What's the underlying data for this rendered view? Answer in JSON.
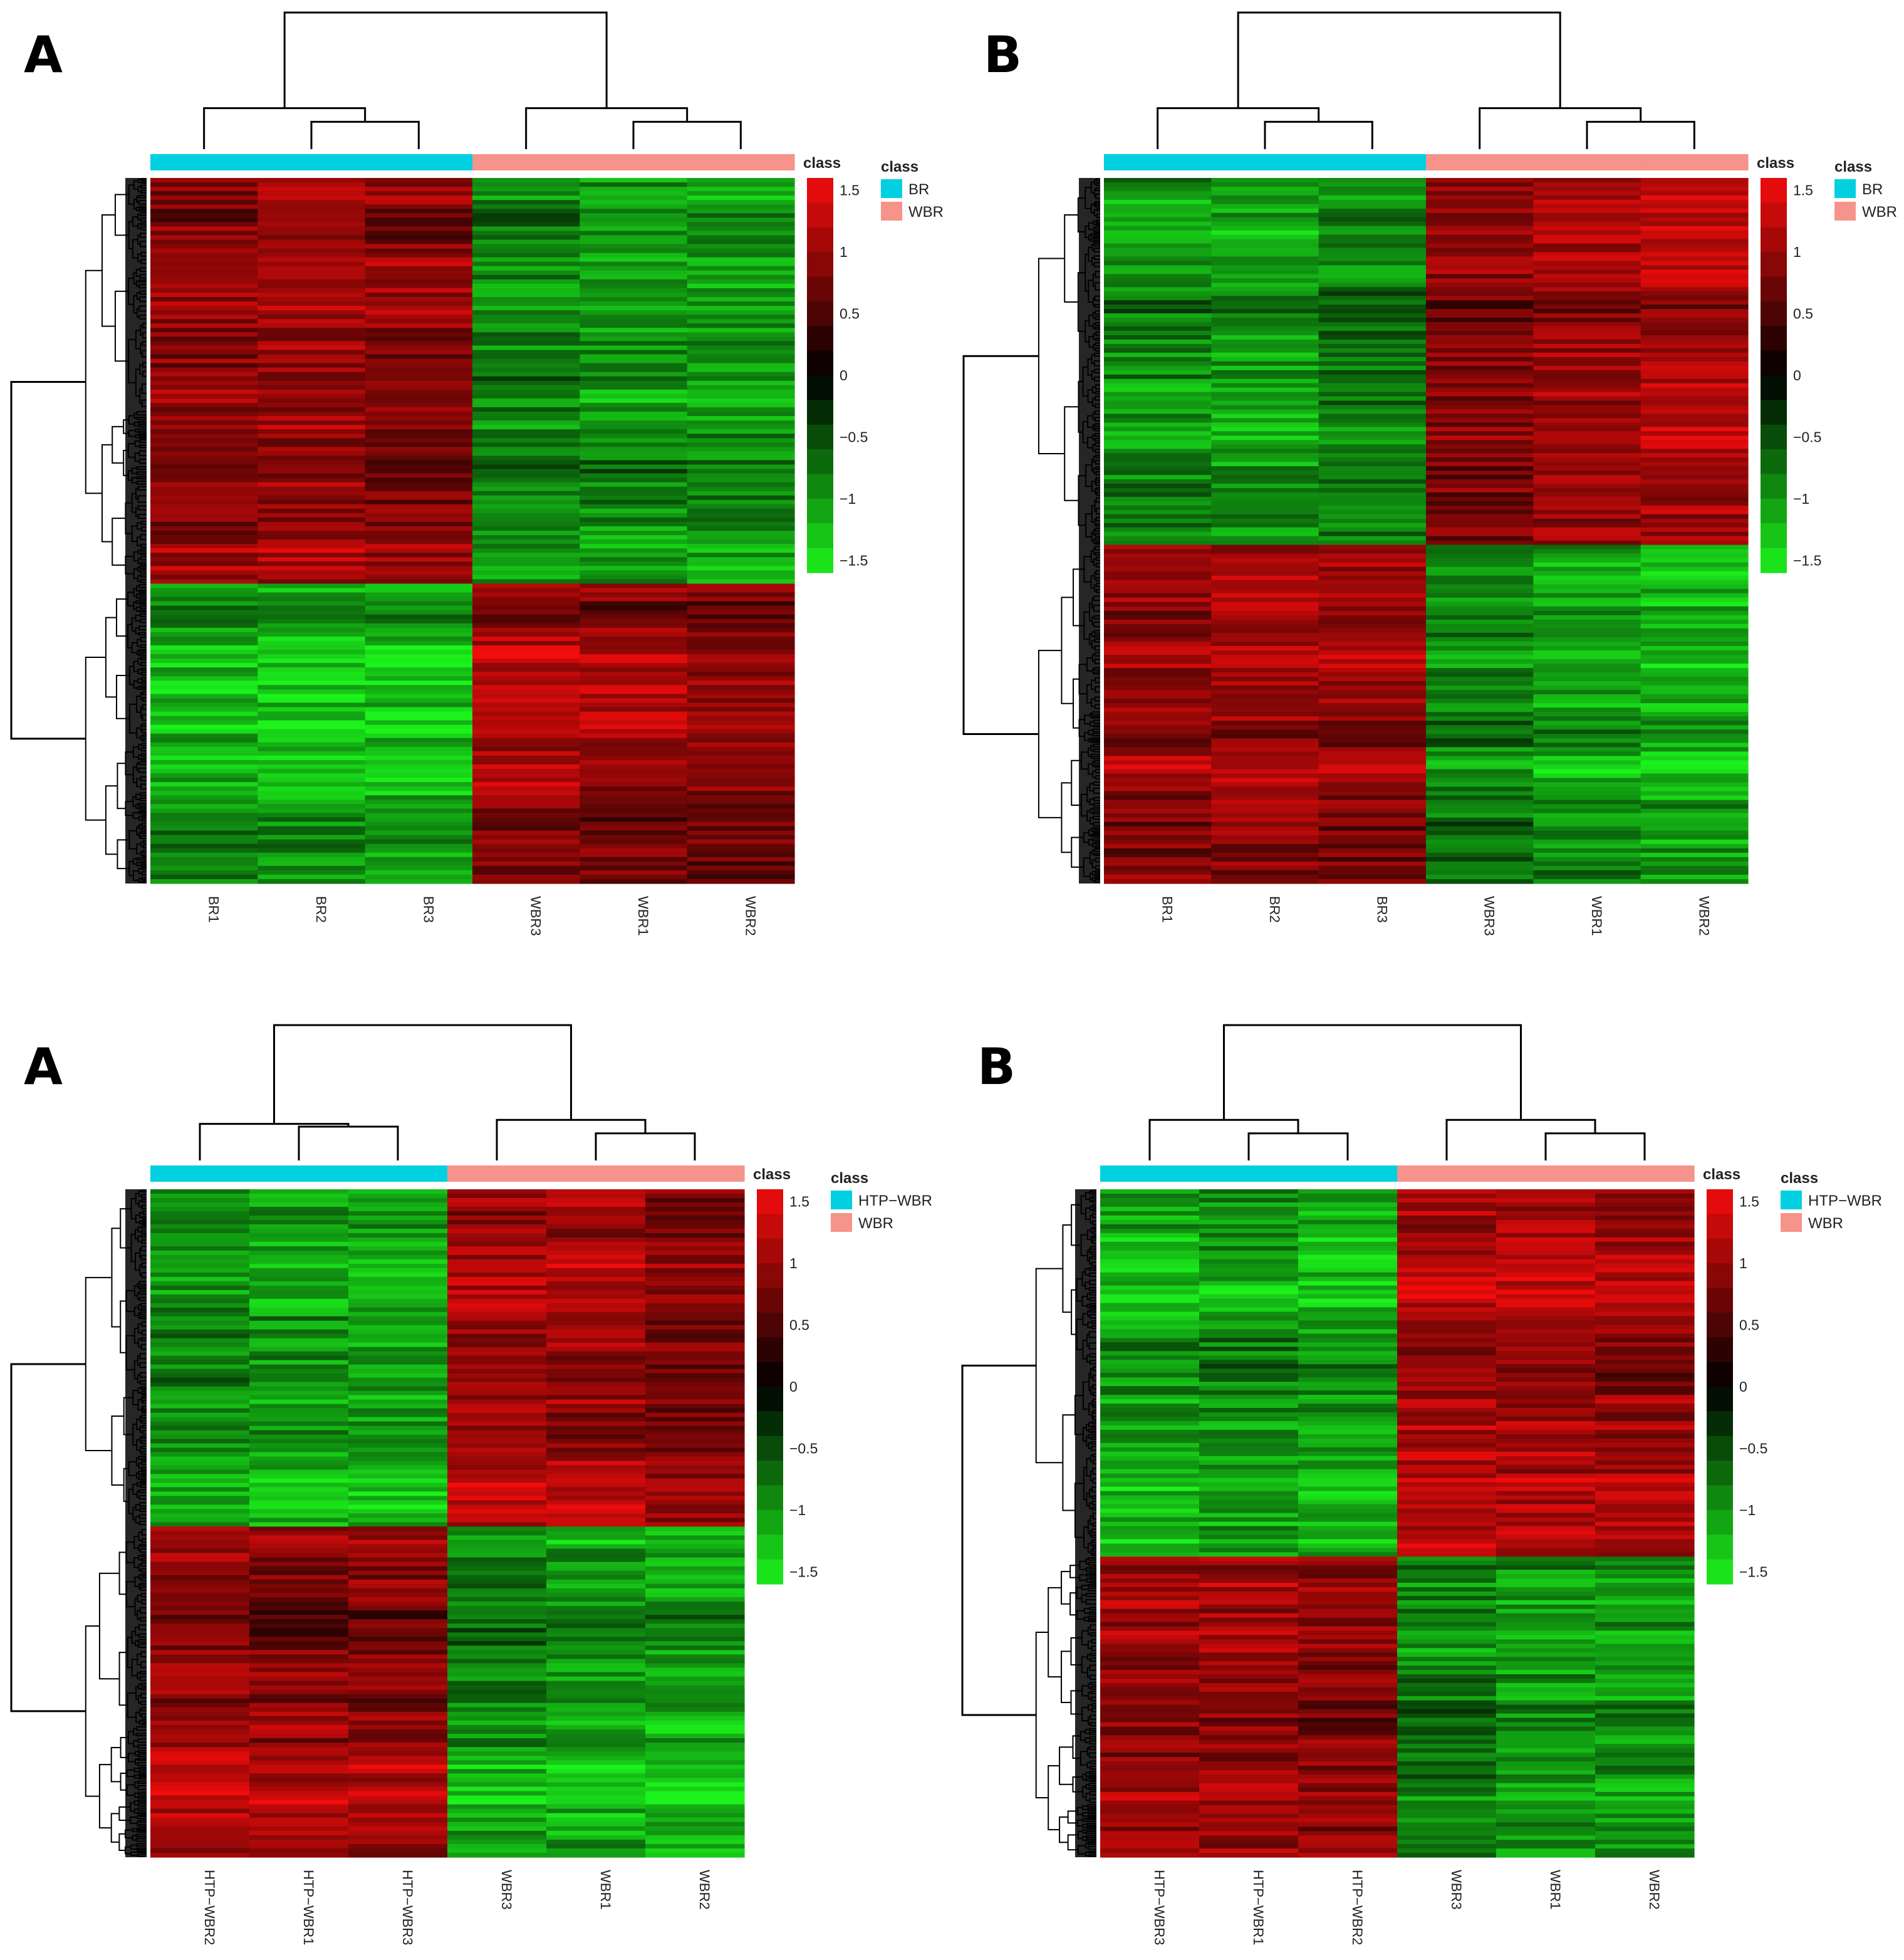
{
  "colors": {
    "group_a": "#00d0e0",
    "group_b": "#f6938a",
    "low": "#1cf21c",
    "mid": "#000000",
    "high": "#f20c0c"
  },
  "chart_data": [
    {
      "type": "heatmap",
      "panel_label": "A",
      "samples": [
        "BR1",
        "BR2",
        "BR3",
        "WBR3",
        "WBR1",
        "WBR2"
      ],
      "sample_class": [
        "BR",
        "BR",
        "BR",
        "WBR",
        "WBR",
        "WBR"
      ],
      "class_annotation_label": "class",
      "legend_title": "class",
      "legend_entries": [
        "BR",
        "WBR"
      ],
      "colorbar_ticks": [
        1.5,
        1,
        0.5,
        0,
        -0.5,
        -1,
        -1.5
      ],
      "colorbar_tick_labels": [
        "1.5",
        "1",
        "0.5",
        "0",
        "−0.5",
        "−1",
        "−1.5"
      ],
      "colorbar_range": [
        -1.6,
        1.6
      ],
      "row_cluster_fractions": [
        0.575,
        0.425
      ],
      "block_means": [
        [
          0.9,
          1.0,
          0.9,
          -0.9,
          -1.0,
          -1.0
        ],
        [
          -1.0,
          -1.1,
          -1.1,
          1.0,
          0.9,
          0.8
        ]
      ],
      "column_dendrogram": [
        [
          4,
          5,
          0.2
        ],
        [
          3,
          0,
          0.3
        ],
        [
          1,
          2,
          0.2
        ],
        [
          0,
          1,
          0.25
        ],
        [
          2,
          3,
          0.85
        ]
      ],
      "row_dendrogram": "present"
    },
    {
      "type": "heatmap",
      "panel_label": "B",
      "samples": [
        "BR1",
        "BR2",
        "BR3",
        "WBR3",
        "WBR1",
        "WBR2"
      ],
      "sample_class": [
        "BR",
        "BR",
        "BR",
        "WBR",
        "WBR",
        "WBR"
      ],
      "class_annotation_label": "class",
      "legend_title": "class",
      "legend_entries": [
        "BR",
        "WBR"
      ],
      "colorbar_ticks": [
        1.5,
        1,
        0.5,
        0,
        -0.5,
        -1,
        -1.5
      ],
      "colorbar_tick_labels": [
        "1.5",
        "1",
        "0.5",
        "0",
        "−0.5",
        "−1",
        "−1.5"
      ],
      "colorbar_range": [
        -1.6,
        1.6
      ],
      "row_cluster_fractions": [
        0.52,
        0.48
      ],
      "block_means": [
        [
          -0.9,
          -1.0,
          -0.8,
          0.8,
          1.0,
          1.1
        ],
        [
          0.9,
          1.0,
          0.9,
          -0.8,
          -1.0,
          -1.1
        ]
      ],
      "column_dendrogram": [
        [
          4,
          5,
          0.2
        ],
        [
          3,
          0,
          0.3
        ],
        [
          1,
          2,
          0.2
        ],
        [
          0,
          1,
          0.25
        ],
        [
          2,
          3,
          0.85
        ]
      ],
      "row_dendrogram": "present"
    },
    {
      "type": "heatmap",
      "panel_label": "A",
      "samples": [
        "HTP−WBR2",
        "HTP−WBR1",
        "HTP−WBR3",
        "WBR3",
        "WBR1",
        "WBR2"
      ],
      "sample_class": [
        "HTP−WBR",
        "HTP−WBR",
        "HTP−WBR",
        "WBR",
        "WBR",
        "WBR"
      ],
      "class_annotation_label": "class",
      "legend_title": "class",
      "legend_entries": [
        "HTP−WBR",
        "WBR"
      ],
      "colorbar_ticks": [
        1.5,
        1,
        0.5,
        0,
        -0.5,
        -1,
        -1.5
      ],
      "colorbar_tick_labels": [
        "1.5",
        "1",
        "0.5",
        "0",
        "−0.5",
        "−1",
        "−1.5"
      ],
      "colorbar_range": [
        -1.6,
        1.6
      ],
      "row_cluster_fractions": [
        0.505,
        0.495
      ],
      "block_means": [
        [
          -0.9,
          -1.0,
          -1.1,
          1.0,
          1.0,
          0.8
        ],
        [
          1.0,
          0.9,
          0.9,
          -0.9,
          -1.0,
          -1.1
        ]
      ],
      "column_dendrogram": [
        [
          4,
          5,
          0.2
        ],
        [
          3,
          0,
          0.3
        ],
        [
          1,
          2,
          0.1
        ],
        [
          0,
          1,
          0.2
        ],
        [
          2,
          3,
          0.85
        ]
      ],
      "row_dendrogram": "present"
    },
    {
      "type": "heatmap",
      "panel_label": "B",
      "samples": [
        "HTP−WBR3",
        "HTP−WBR1",
        "HTP−WBR2",
        "WBR3",
        "WBR1",
        "WBR2"
      ],
      "sample_class": [
        "HTP−WBR",
        "HTP−WBR",
        "HTP−WBR",
        "WBR",
        "WBR",
        "WBR"
      ],
      "class_annotation_label": "class",
      "legend_title": "class",
      "legend_entries": [
        "HTP−WBR",
        "WBR"
      ],
      "colorbar_ticks": [
        1.5,
        1,
        0.5,
        0,
        -0.5,
        -1,
        -1.5
      ],
      "colorbar_tick_labels": [
        "1.5",
        "1",
        "0.5",
        "0",
        "−0.5",
        "−1",
        "−1.5"
      ],
      "colorbar_range": [
        -1.6,
        1.6
      ],
      "row_cluster_fractions": [
        0.55,
        0.45
      ],
      "block_means": [
        [
          -1.0,
          -0.9,
          -1.0,
          1.0,
          1.0,
          0.9
        ],
        [
          1.0,
          1.0,
          0.9,
          -0.8,
          -1.0,
          -1.0
        ]
      ],
      "column_dendrogram": [
        [
          4,
          5,
          0.2
        ],
        [
          3,
          0,
          0.3
        ],
        [
          1,
          2,
          0.2
        ],
        [
          0,
          1,
          0.25
        ],
        [
          2,
          3,
          0.85
        ]
      ],
      "row_dendrogram": "present"
    }
  ]
}
